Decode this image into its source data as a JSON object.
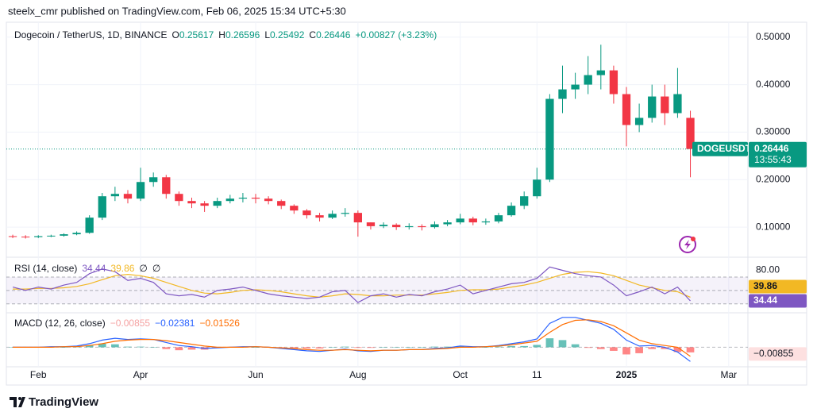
{
  "header": {
    "text": "steelx_cmr published on TradingView.com, Feb 06, 2025 15:34 UTC+5:30"
  },
  "footer": {
    "brand": "TradingView"
  },
  "chart_data": [
    {
      "type": "candlestick",
      "title": "Dogecoin / TetherUS, 1D, BINANCE",
      "ohlc_header": [
        {
          "label": "O",
          "value": 0.25617
        },
        {
          "label": "H",
          "value": 0.26596
        },
        {
          "label": "L",
          "value": 0.25492
        },
        {
          "label": "C",
          "value": 0.26446
        }
      ],
      "change": "+0.00827 (+3.23%)",
      "categories": [
        null,
        null,
        "Feb",
        null,
        null,
        null,
        null,
        null,
        null,
        null,
        "Apr",
        null,
        null,
        null,
        null,
        null,
        null,
        null,
        null,
        "Jun",
        null,
        null,
        null,
        null,
        null,
        null,
        null,
        "Aug",
        null,
        null,
        null,
        null,
        null,
        null,
        null,
        "Oct",
        null,
        null,
        null,
        null,
        null,
        "11",
        null,
        null,
        null,
        null,
        null,
        null,
        "2025",
        null,
        null,
        null,
        null,
        null,
        null,
        null,
        "Mar",
        null
      ],
      "open": [
        0.081,
        0.08,
        0.079,
        0.081,
        0.082,
        0.085,
        0.088,
        0.12,
        0.165,
        0.17,
        0.16,
        0.195,
        0.205,
        0.17,
        0.155,
        0.15,
        0.145,
        0.155,
        0.16,
        0.162,
        0.16,
        0.155,
        0.145,
        0.135,
        0.125,
        0.12,
        0.128,
        0.13,
        0.11,
        0.102,
        0.105,
        0.1,
        0.102,
        0.1,
        0.106,
        0.11,
        0.118,
        0.11,
        0.112,
        0.125,
        0.145,
        0.165,
        0.2,
        0.37,
        0.39,
        0.4,
        0.42,
        0.43,
        0.38,
        0.315,
        0.33,
        0.375,
        0.34,
        0.33,
        null,
        null,
        null,
        null
      ],
      "high": [
        0.084,
        0.083,
        0.083,
        0.084,
        0.087,
        0.091,
        0.125,
        0.172,
        0.185,
        0.178,
        0.225,
        0.215,
        0.21,
        0.175,
        0.162,
        0.155,
        0.162,
        0.168,
        0.172,
        0.17,
        0.165,
        0.158,
        0.148,
        0.138,
        0.13,
        0.135,
        0.14,
        0.135,
        0.11,
        0.11,
        0.108,
        0.108,
        0.106,
        0.112,
        0.115,
        0.128,
        0.122,
        0.118,
        0.13,
        0.152,
        0.175,
        0.225,
        0.38,
        0.44,
        0.425,
        0.46,
        0.484,
        0.44,
        0.395,
        0.36,
        0.4,
        0.4,
        0.435,
        0.345,
        null,
        null,
        null,
        null
      ],
      "low": [
        0.077,
        0.076,
        0.077,
        0.079,
        0.08,
        0.083,
        0.086,
        0.115,
        0.155,
        0.15,
        0.155,
        0.185,
        0.16,
        0.145,
        0.14,
        0.132,
        0.14,
        0.15,
        0.152,
        0.15,
        0.148,
        0.138,
        0.128,
        0.118,
        0.112,
        0.117,
        0.122,
        0.08,
        0.095,
        0.098,
        0.094,
        0.095,
        0.093,
        0.097,
        0.102,
        0.106,
        0.104,
        0.105,
        0.108,
        0.122,
        0.138,
        0.16,
        0.195,
        0.34,
        0.37,
        0.38,
        0.39,
        0.36,
        0.27,
        0.3,
        0.32,
        0.315,
        0.33,
        0.205,
        null,
        null,
        null,
        null
      ],
      "close": [
        0.08,
        0.079,
        0.081,
        0.082,
        0.085,
        0.088,
        0.12,
        0.165,
        0.17,
        0.16,
        0.195,
        0.205,
        0.17,
        0.155,
        0.15,
        0.145,
        0.155,
        0.16,
        0.162,
        0.16,
        0.155,
        0.145,
        0.135,
        0.125,
        0.12,
        0.128,
        0.13,
        0.11,
        0.102,
        0.105,
        0.1,
        0.102,
        0.1,
        0.106,
        0.11,
        0.118,
        0.11,
        0.112,
        0.125,
        0.145,
        0.165,
        0.2,
        0.37,
        0.39,
        0.4,
        0.42,
        0.43,
        0.38,
        0.315,
        0.33,
        0.375,
        0.34,
        0.38,
        0.26446,
        null,
        null,
        null,
        null
      ],
      "up_color": "#089981",
      "down_color": "#f23645",
      "ylim": [
        0.04,
        0.528
      ],
      "yticks": [
        {
          "value": 0.1,
          "label": "0.10000"
        },
        {
          "value": 0.2,
          "label": "0.20000"
        },
        {
          "value": 0.3,
          "label": "0.30000"
        },
        {
          "value": 0.4,
          "label": "0.40000"
        },
        {
          "value": 0.5,
          "label": "0.50000"
        }
      ],
      "grid": true,
      "last": {
        "symbol": "DOGEUSDT",
        "price": 0.26446,
        "countdown": "13:55:43"
      }
    },
    {
      "type": "line",
      "title": "RSI (14, close)",
      "legend_values": [
        34.44,
        39.86,
        "∅",
        "∅"
      ],
      "series": [
        {
          "color": "#7e57c2",
          "values": [
            55,
            50,
            55,
            52,
            58,
            62,
            75,
            82,
            78,
            65,
            68,
            62,
            45,
            42,
            44,
            40,
            50,
            52,
            55,
            50,
            45,
            42,
            40,
            38,
            40,
            48,
            50,
            32,
            42,
            45,
            40,
            44,
            42,
            48,
            52,
            58,
            45,
            50,
            55,
            60,
            62,
            68,
            85,
            80,
            75,
            72,
            70,
            58,
            42,
            48,
            55,
            45,
            55,
            34.44,
            null,
            null,
            null,
            null
          ]
        },
        {
          "color": "#f2b824",
          "values": [
            52,
            52,
            53,
            53,
            54,
            56,
            60,
            66,
            72,
            74,
            72,
            68,
            62,
            56,
            50,
            46,
            45,
            47,
            50,
            51,
            50,
            48,
            45,
            42,
            40,
            42,
            45,
            44,
            42,
            42,
            43,
            43,
            43,
            45,
            47,
            50,
            51,
            51,
            52,
            55,
            58,
            62,
            68,
            74,
            77,
            78,
            76,
            72,
            65,
            58,
            54,
            50,
            48,
            39.86,
            null,
            null,
            null,
            null
          ]
        }
      ],
      "levels": [
        70,
        50,
        30
      ],
      "ylim": [
        19,
        96
      ],
      "yticks": [
        {
          "value": 80,
          "label": "80.00"
        }
      ]
    },
    {
      "type": "macd",
      "title": "MACD (12, 26, close)",
      "legend_values": [
        "−0.00855",
        "−0.02381",
        "−0.01526"
      ],
      "legend_colors": [
        "#f5a3a3",
        "#2962ff",
        "#ff6d00"
      ],
      "histogram": {
        "up_color": "#26a69a",
        "down_color": "#ff5252",
        "values": [
          0,
          0,
          0,
          0.001,
          0,
          0.001,
          0.003,
          0.006,
          0.005,
          0.001,
          0.001,
          0,
          -0.003,
          -0.005,
          -0.004,
          -0.004,
          -0.001,
          0,
          0.001,
          0,
          0,
          -0.001,
          -0.002,
          -0.002,
          -0.002,
          0,
          0.001,
          -0.001,
          -0.001,
          0,
          0,
          0,
          0,
          0.001,
          0.001,
          0.002,
          0.001,
          0,
          0.001,
          0.002,
          0.002,
          0.004,
          0.015,
          0.012,
          0.005,
          -0.001,
          -0.003,
          -0.006,
          -0.012,
          -0.01,
          -0.003,
          -0.003,
          -0.008,
          -0.00855,
          null,
          null,
          null,
          null
        ]
      },
      "series": [
        {
          "color": "#2962ff",
          "values": [
            0,
            0,
            0,
            0.001,
            0.001,
            0.002,
            0.006,
            0.012,
            0.015,
            0.013,
            0.014,
            0.013,
            0.008,
            0.003,
            0.001,
            -0.002,
            -0.001,
            0,
            0.001,
            0.001,
            0,
            -0.002,
            -0.004,
            -0.006,
            -0.007,
            -0.005,
            -0.003,
            -0.006,
            -0.007,
            -0.005,
            -0.005,
            -0.004,
            -0.004,
            -0.002,
            -0.001,
            0.002,
            0.001,
            0.001,
            0.003,
            0.006,
            0.009,
            0.014,
            0.04,
            0.05,
            0.05,
            0.045,
            0.04,
            0.03,
            0.012,
            0.002,
            0.003,
            0.0,
            -0.008,
            -0.02381,
            null,
            null,
            null,
            null
          ]
        },
        {
          "color": "#ff6d00",
          "values": [
            0,
            0,
            0,
            0,
            0.001,
            0.001,
            0.003,
            0.006,
            0.01,
            0.012,
            0.013,
            0.013,
            0.011,
            0.008,
            0.005,
            0.002,
            0,
            0,
            0,
            0.001,
            0,
            -0.001,
            -0.002,
            -0.004,
            -0.005,
            -0.005,
            -0.004,
            -0.005,
            -0.006,
            -0.005,
            -0.005,
            -0.004,
            -0.004,
            -0.003,
            -0.002,
            0,
            0,
            0.001,
            0.002,
            0.004,
            0.007,
            0.01,
            0.025,
            0.038,
            0.045,
            0.046,
            0.043,
            0.036,
            0.024,
            0.012,
            0.006,
            0.003,
            0.0,
            -0.01526,
            null,
            null,
            null,
            null
          ]
        }
      ],
      "ylim": [
        -0.03,
        0.055
      ]
    }
  ]
}
